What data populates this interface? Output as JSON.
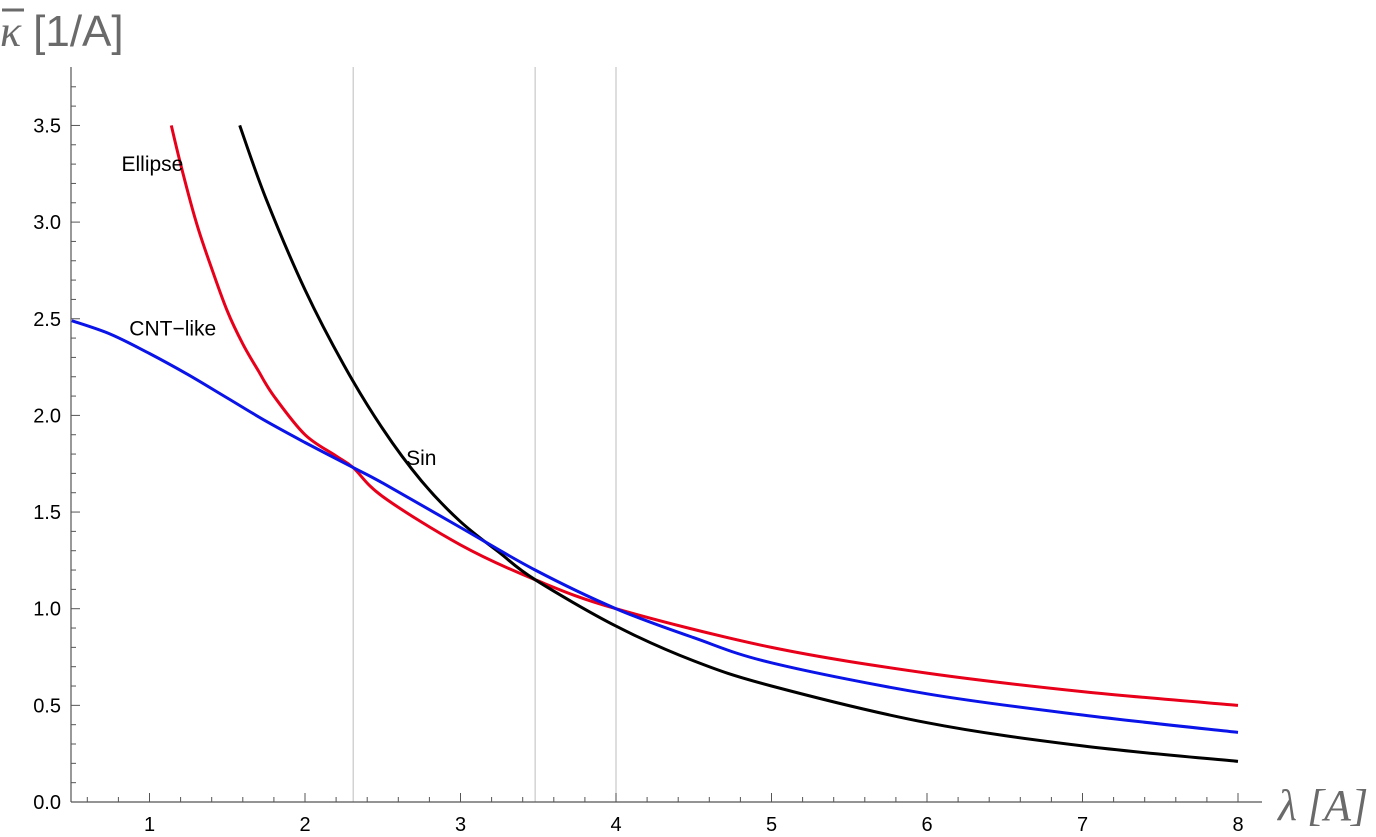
{
  "chart_data": {
    "type": "line",
    "title": "",
    "xlabel": {
      "symbol": "λ",
      "unit": "[A]"
    },
    "ylabel": {
      "symbol": "κ",
      "unit": "[1/A]"
    },
    "xlim": [
      0.5,
      8.15
    ],
    "ylim": [
      0.0,
      3.8
    ],
    "x_ticks": [
      "1",
      "2",
      "3",
      "4",
      "5",
      "6",
      "7",
      "8"
    ],
    "y_ticks": [
      "0.0",
      "0.5",
      "1.0",
      "1.5",
      "2.0",
      "2.5",
      "3.0",
      "3.5"
    ],
    "grid": false,
    "legend": "none",
    "vlines": [
      2.31,
      3.48,
      4.0
    ],
    "series": [
      {
        "name": "Ellipse",
        "color": "#e8001a",
        "label_at": [
          0.82,
          3.3
        ],
        "x": [
          1.14,
          1.2,
          1.3,
          1.4,
          1.5,
          1.6,
          1.7,
          1.8,
          2.0,
          2.2,
          2.31,
          2.5,
          3.0,
          3.48,
          4.0,
          5.0,
          6.0,
          7.0,
          8.0
        ],
        "y": [
          3.5,
          3.3,
          3.0,
          2.76,
          2.54,
          2.37,
          2.23,
          2.1,
          1.9,
          1.79,
          1.73,
          1.58,
          1.33,
          1.15,
          1.0,
          0.8,
          0.667,
          0.571,
          0.5
        ]
      },
      {
        "name": "Sin",
        "color": "#000000",
        "label_at": [
          2.65,
          1.78
        ],
        "x": [
          1.58,
          1.75,
          2.0,
          2.25,
          2.5,
          2.75,
          3.0,
          3.25,
          3.48,
          4.0,
          4.5,
          5.0,
          6.0,
          7.0,
          8.0
        ],
        "y": [
          3.5,
          3.12,
          2.65,
          2.26,
          1.93,
          1.66,
          1.45,
          1.29,
          1.15,
          0.91,
          0.73,
          0.6,
          0.41,
          0.29,
          0.21
        ]
      },
      {
        "name": "CNT−like",
        "color": "#0a14e8",
        "label_at": [
          0.87,
          2.45
        ],
        "x": [
          0.5,
          0.75,
          1.0,
          1.25,
          1.5,
          1.75,
          2.0,
          2.31,
          2.5,
          3.0,
          3.48,
          4.0,
          4.5,
          5.0,
          6.0,
          7.0,
          8.0
        ],
        "y": [
          2.49,
          2.42,
          2.32,
          2.21,
          2.09,
          1.97,
          1.86,
          1.73,
          1.65,
          1.42,
          1.2,
          1.0,
          0.85,
          0.72,
          0.56,
          0.45,
          0.36
        ]
      }
    ]
  }
}
